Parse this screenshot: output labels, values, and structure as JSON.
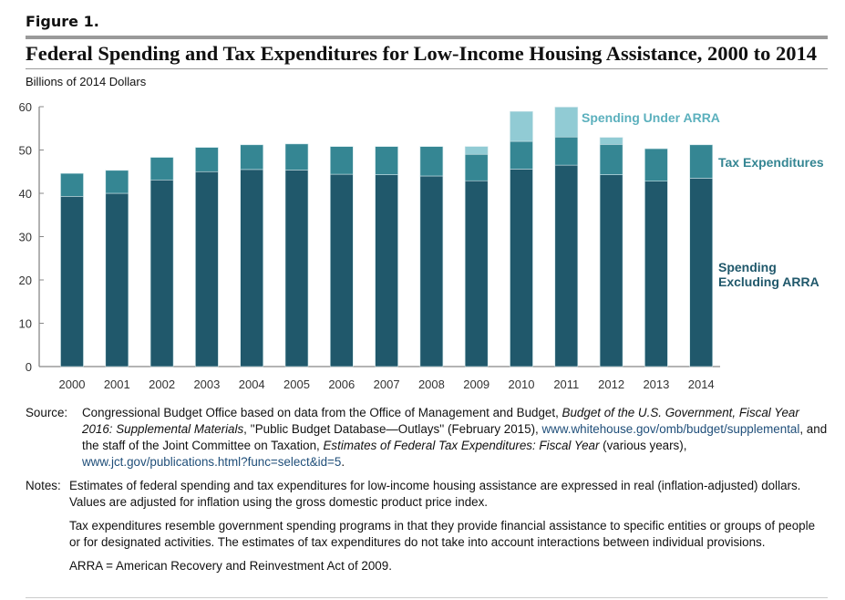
{
  "figure_label": "Figure 1.",
  "chart_data": {
    "type": "bar",
    "stacked": true,
    "title": "Federal Spending and Tax Expenditures for Low-Income Housing Assistance, 2000 to 2014",
    "ylabel": "Billions of 2014 Dollars",
    "ylim": [
      0,
      60
    ],
    "yticks": [
      0,
      10,
      20,
      30,
      40,
      50,
      60
    ],
    "grid": false,
    "legend": "right-inline-labels",
    "categories": [
      "2000",
      "2001",
      "2002",
      "2003",
      "2004",
      "2005",
      "2006",
      "2007",
      "2008",
      "2009",
      "2010",
      "2011",
      "2012",
      "2013",
      "2014"
    ],
    "series": [
      {
        "name": "Spending Excluding ARRA",
        "color": "#20586b",
        "values": [
          39.3,
          40.0,
          43.1,
          45.0,
          45.5,
          45.4,
          44.4,
          44.3,
          44.0,
          42.9,
          45.6,
          46.5,
          44.3,
          42.8,
          43.5
        ]
      },
      {
        "name": "Tax Expenditures",
        "color": "#358693",
        "values": [
          5.3,
          5.3,
          5.2,
          5.6,
          5.7,
          6.0,
          6.4,
          6.5,
          6.8,
          6.1,
          6.4,
          6.5,
          7.0,
          7.5,
          7.7
        ]
      },
      {
        "name": "Spending Under ARRA",
        "color": "#91cbd4",
        "values": [
          0,
          0,
          0,
          0,
          0,
          0,
          0,
          0,
          0,
          1.8,
          6.9,
          6.9,
          1.6,
          0,
          0
        ]
      }
    ]
  },
  "legend_labels": {
    "arra": "Spending Under ARRA",
    "tax": "Tax Expenditures",
    "spend_line1": "Spending",
    "spend_line2": "Excluding ARRA"
  },
  "source": {
    "label": "Source:",
    "t1": "Congressional Budget Office based on data from the Office of Management and Budget, ",
    "i1": "Budget of the U.S. Government, Fiscal Year 2016: Supplemental Materials",
    "t2": ", ''Public Budget Database—Outlays'' (February 2015), ",
    "l1": "www.whitehouse.gov/omb/budget/supplemental",
    "t3": ", and the staff of the Joint Committee on Taxation, ",
    "i2": "Estimates of Federal Tax Expenditures: Fiscal Year",
    "t4": " (various years), ",
    "l2": "www.jct.gov/publications.html?func=select&id=5",
    "t5": "."
  },
  "notes": {
    "label": "Notes:",
    "p1": "Estimates of federal spending and tax expenditures for low-income housing assistance are expressed in real (inflation-adjusted) dollars. Values are adjusted for inflation using the gross domestic product price index.",
    "p2": "Tax expenditures resemble government spending programs in that they provide financial assistance to specific entities or groups of people or for designated activities. The estimates of tax expenditures do not take into account interactions between individual provisions.",
    "p3": "ARRA = American Recovery and Reinvestment Act of 2009."
  }
}
